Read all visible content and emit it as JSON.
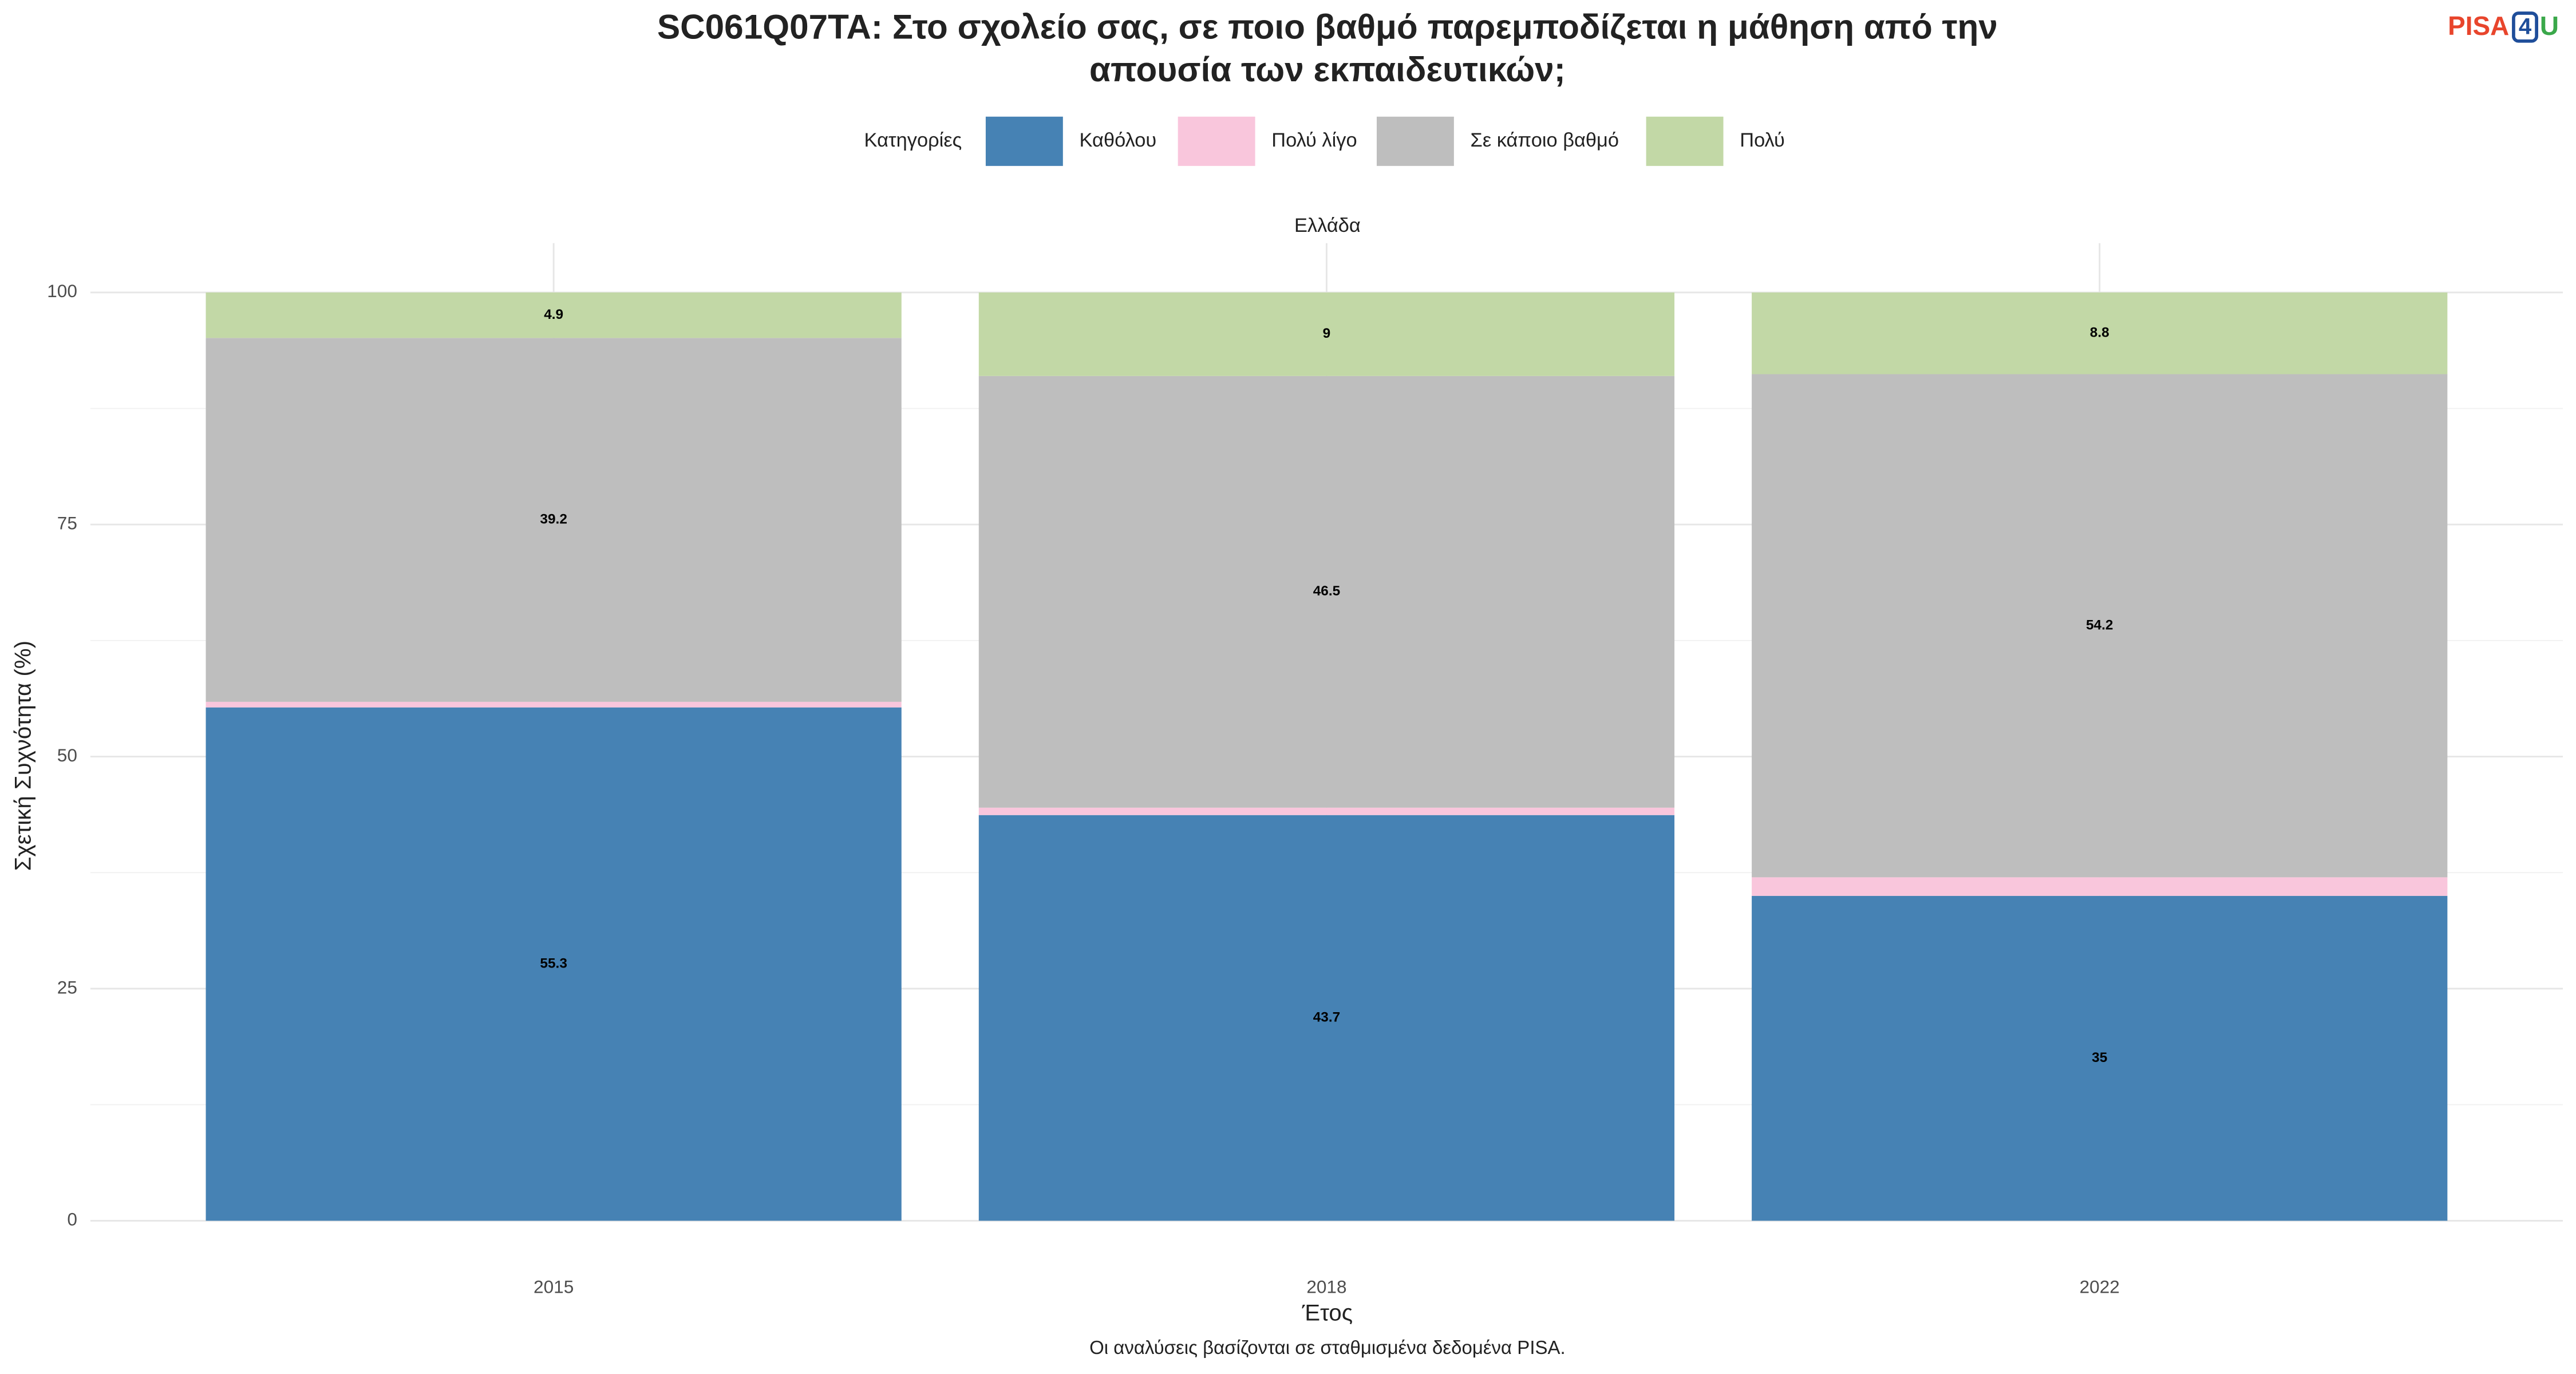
{
  "chart_data": {
    "type": "stacked-bar",
    "title": [
      "SC061Q07TA: Στο σχολείο σας, σε ποιο βαθμό παρεμποδίζεται η μάθηση από την",
      "απουσία των εκπαιδευτικών;"
    ],
    "facet": "Ελλάδα",
    "legend_title": "Κατηγορίες",
    "x_label": "Έτος",
    "y_label": "Σχετική Συχνότητα (%)",
    "caption": "Οι αναλύσεις βασίζονται σε σταθμισμένα δεδομένα PISA.",
    "logo": [
      "PISA",
      "4",
      "U"
    ],
    "categories": [
      "2015",
      "2018",
      "2022"
    ],
    "series": [
      {
        "name": "Καθόλου",
        "color": "#4682b4",
        "values": [
          55.3,
          43.7,
          35
        ]
      },
      {
        "name": "Πολύ λίγο",
        "color": "#f9c6dc",
        "values": [
          0.6,
          0.8,
          2.0
        ]
      },
      {
        "name": "Σε κάποιο βαθμό",
        "color": "#bebebe",
        "values": [
          39.2,
          46.5,
          54.2
        ]
      },
      {
        "name": "Πολύ",
        "color": "#c2d8a6",
        "values": [
          4.9,
          9,
          8.8
        ]
      }
    ],
    "ylim": [
      0,
      100
    ],
    "yticks": [
      0,
      25,
      50,
      75,
      100
    ],
    "grid": true,
    "legend_position": "top"
  }
}
